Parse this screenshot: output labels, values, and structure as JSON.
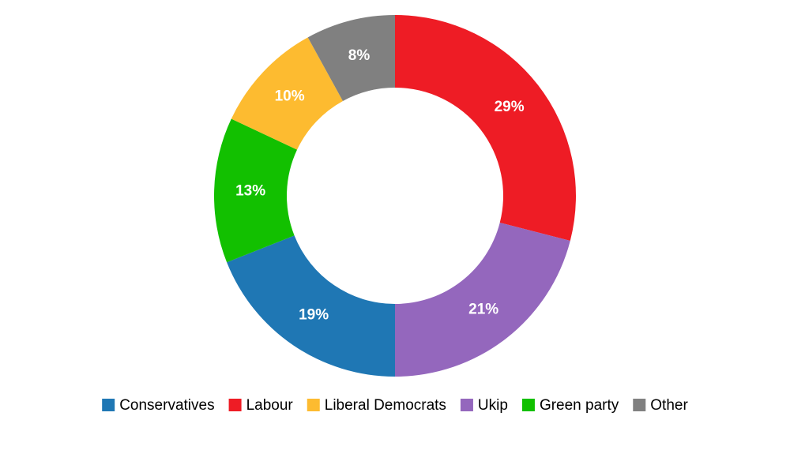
{
  "chart_data": {
    "type": "donut",
    "categories": [
      "Conservatives",
      "Labour",
      "Liberal Democrats",
      "Ukip",
      "Green party",
      "Other"
    ],
    "values": [
      19,
      29,
      10,
      21,
      13,
      8
    ],
    "value_labels": [
      "19%",
      "29%",
      "10%",
      "21%",
      "13%",
      "8%"
    ],
    "colors": [
      "#1f77b4",
      "#ee1c25",
      "#fdbb30",
      "#9467bd",
      "#12c000",
      "#808080"
    ],
    "legend": "bottom"
  }
}
